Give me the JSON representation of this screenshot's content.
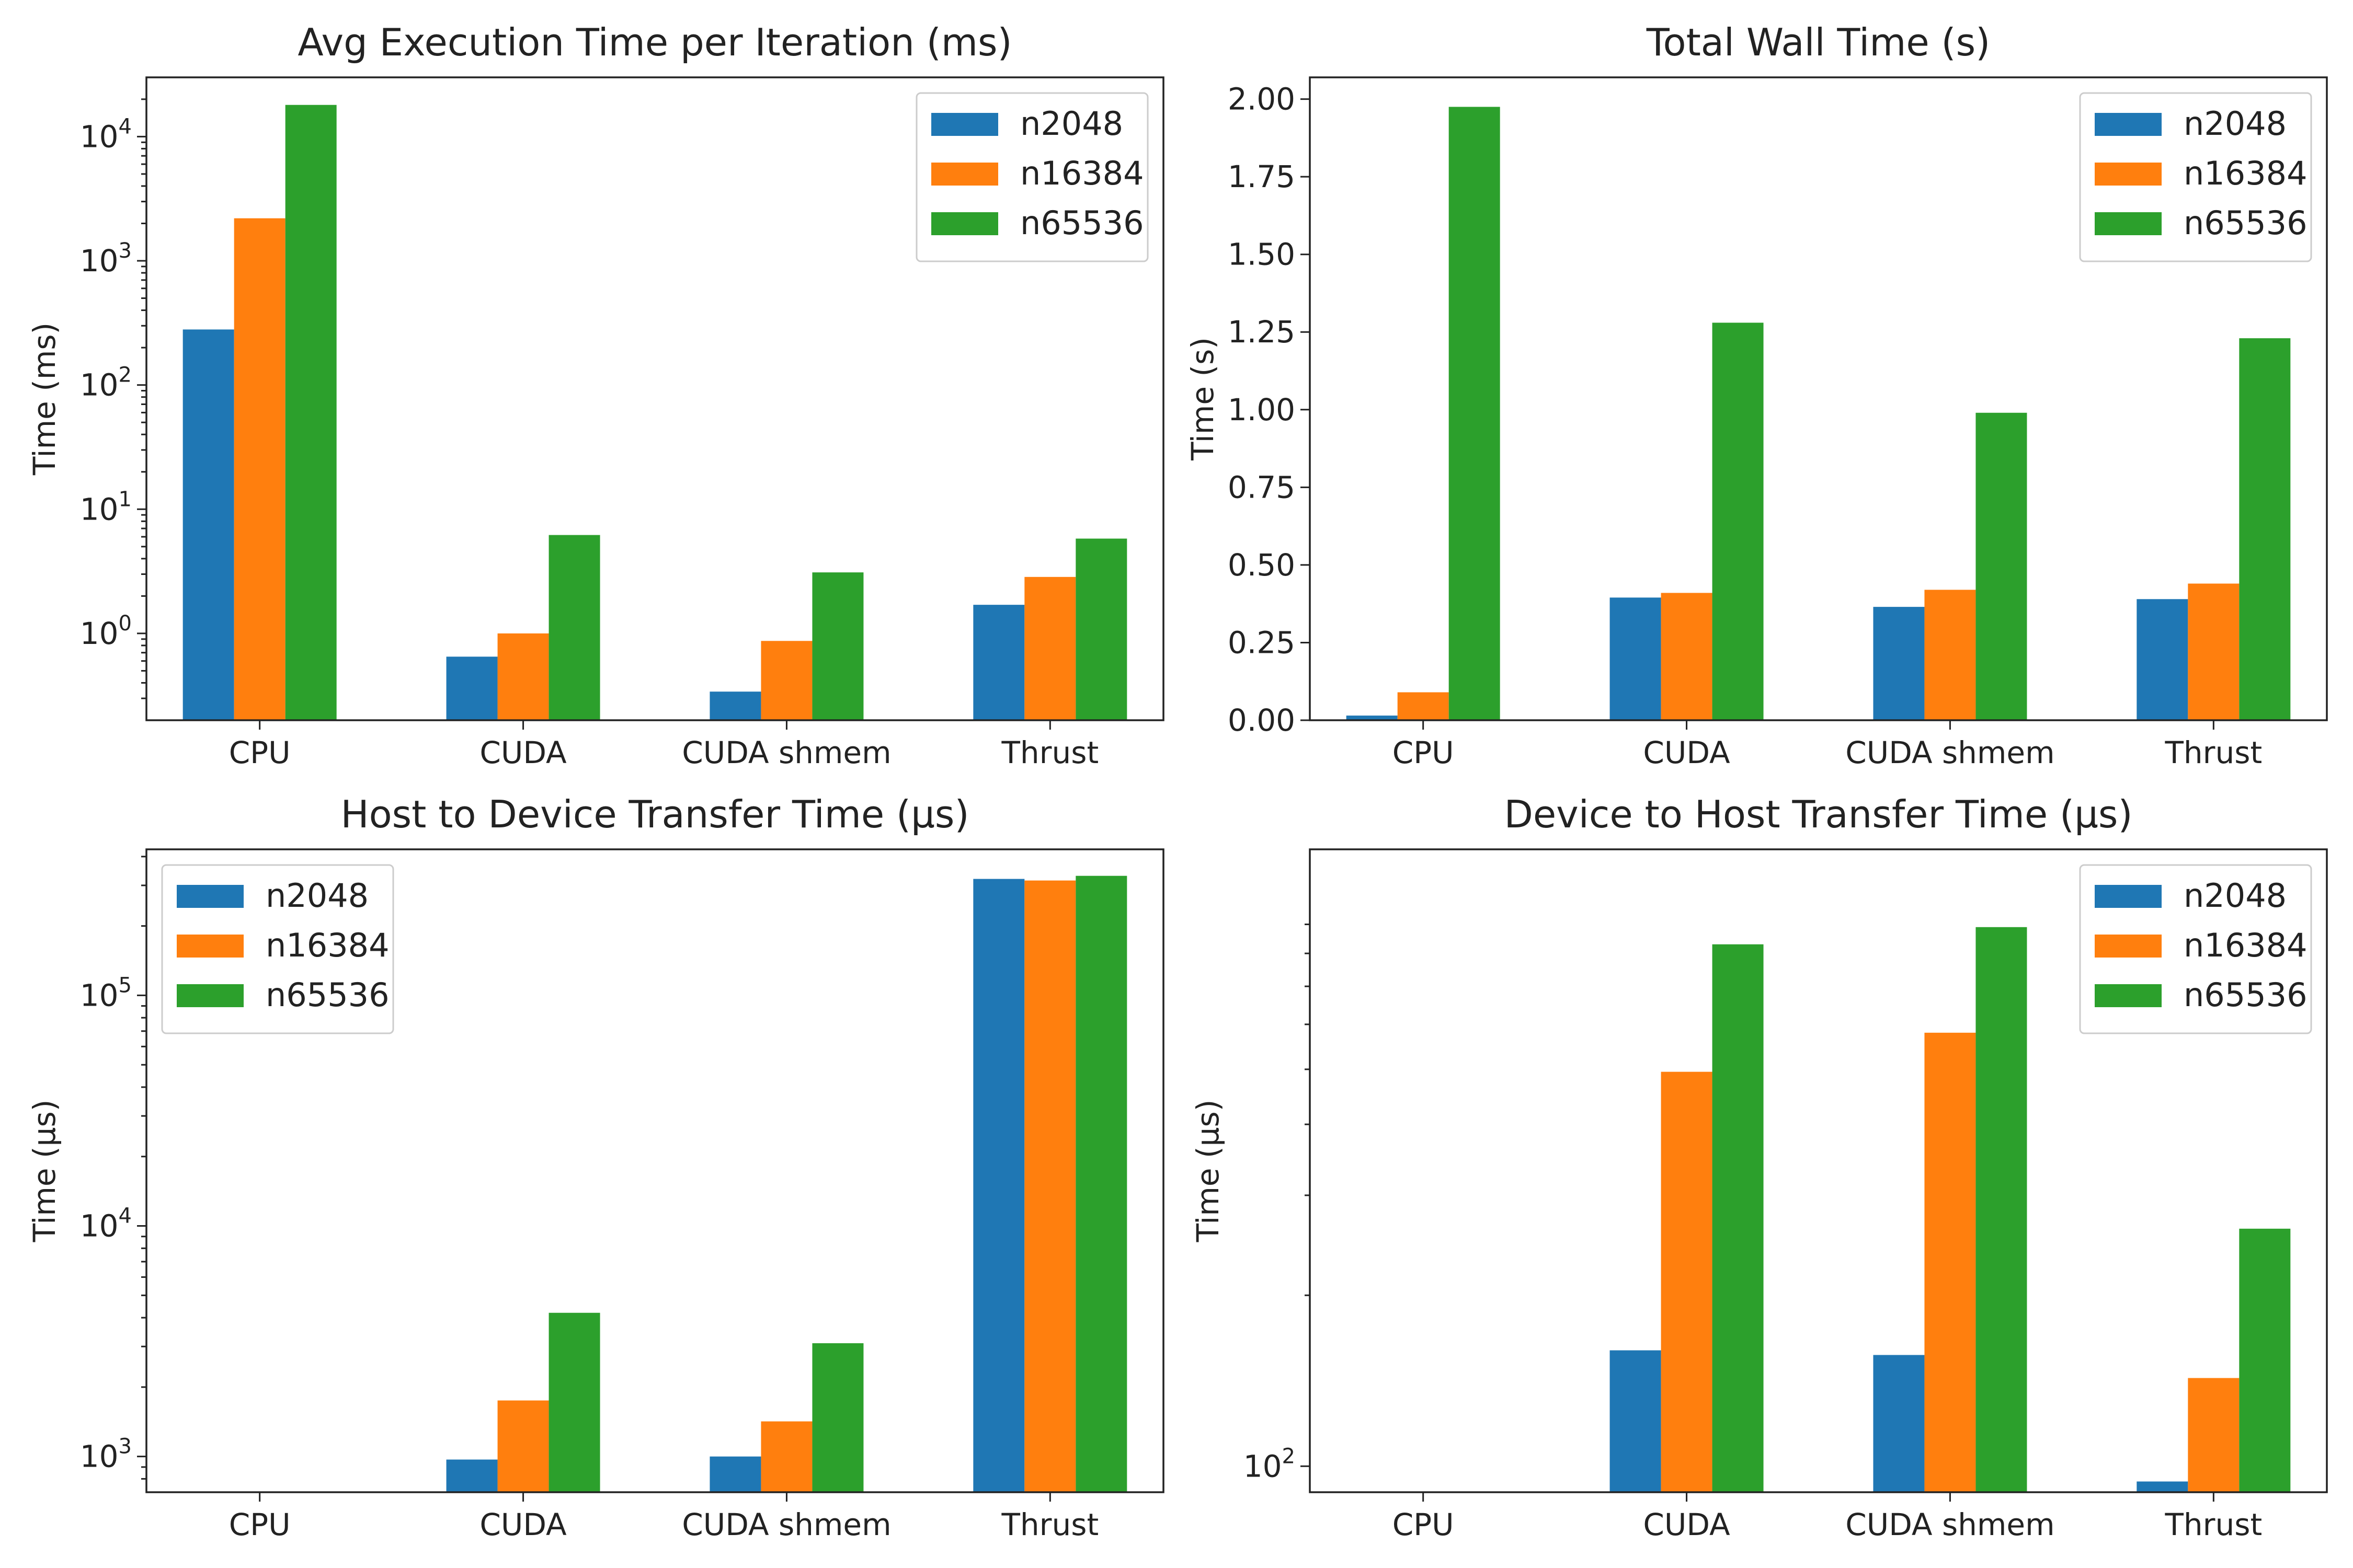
{
  "colors": {
    "n2048": "#1f77b4",
    "n16384": "#ff7f0e",
    "n65536": "#2ca02c"
  },
  "chart_data": [
    {
      "id": "avg-exec",
      "type": "bar",
      "title": "Avg Execution Time per Iteration (ms)",
      "ylabel": "Time (ms)",
      "yscale": "log",
      "ylim": [
        0.2,
        30000
      ],
      "yticks": [
        {
          "value": 1,
          "base": "10",
          "exp": "0"
        },
        {
          "value": 10,
          "base": "10",
          "exp": "1"
        },
        {
          "value": 100,
          "base": "10",
          "exp": "2"
        },
        {
          "value": 1000,
          "base": "10",
          "exp": "3"
        },
        {
          "value": 10000,
          "base": "10",
          "exp": "4"
        }
      ],
      "categories": [
        "CPU",
        "CUDA",
        "CUDA shmem",
        "Thrust"
      ],
      "legend": "top-right",
      "series": [
        {
          "name": "n2048",
          "values": [
            280,
            0.65,
            0.34,
            1.7
          ]
        },
        {
          "name": "n16384",
          "values": [
            2200,
            1.0,
            0.87,
            2.85
          ]
        },
        {
          "name": "n65536",
          "values": [
            18000,
            6.2,
            3.1,
            5.8
          ]
        }
      ]
    },
    {
      "id": "wall",
      "type": "bar",
      "title": "Total Wall Time (s)",
      "ylabel": "Time (s)",
      "yscale": "linear",
      "ylim": [
        0,
        2.07
      ],
      "yticks": [
        {
          "value": 0,
          "label": "0.00"
        },
        {
          "value": 0.25,
          "label": "0.25"
        },
        {
          "value": 0.5,
          "label": "0.50"
        },
        {
          "value": 0.75,
          "label": "0.75"
        },
        {
          "value": 1.0,
          "label": "1.00"
        },
        {
          "value": 1.25,
          "label": "1.25"
        },
        {
          "value": 1.5,
          "label": "1.50"
        },
        {
          "value": 1.75,
          "label": "1.75"
        },
        {
          "value": 2.0,
          "label": "2.00"
        }
      ],
      "categories": [
        "CPU",
        "CUDA",
        "CUDA shmem",
        "Thrust"
      ],
      "legend": "top-right",
      "series": [
        {
          "name": "n2048",
          "values": [
            0.015,
            0.395,
            0.365,
            0.39
          ]
        },
        {
          "name": "n16384",
          "values": [
            0.09,
            0.41,
            0.42,
            0.44
          ]
        },
        {
          "name": "n65536",
          "values": [
            1.975,
            1.28,
            0.99,
            1.23
          ]
        }
      ]
    },
    {
      "id": "h2d",
      "type": "bar",
      "title": "Host to Device Transfer Time (μs)",
      "ylabel": "Time (μs)",
      "yscale": "log",
      "ylim": [
        700,
        430000
      ],
      "yticks": [
        {
          "value": 1000,
          "base": "10",
          "exp": "3"
        },
        {
          "value": 10000,
          "base": "10",
          "exp": "4"
        },
        {
          "value": 100000,
          "base": "10",
          "exp": "5"
        }
      ],
      "categories": [
        "CPU",
        "CUDA",
        "CUDA shmem",
        "Thrust"
      ],
      "legend": "top-left",
      "series": [
        {
          "name": "n2048",
          "values": [
            null,
            970,
            1000,
            320000
          ]
        },
        {
          "name": "n16384",
          "values": [
            null,
            1750,
            1420,
            315000
          ]
        },
        {
          "name": "n65536",
          "values": [
            null,
            4200,
            3100,
            330000
          ]
        }
      ]
    },
    {
      "id": "d2h",
      "type": "bar",
      "title": "Device to Host Transfer Time (μs)",
      "ylabel": "Time (μs)",
      "yscale": "log",
      "ylim": [
        90,
        1220
      ],
      "yticks": [
        {
          "value": 100,
          "base": "10",
          "exp": "2"
        }
      ],
      "categories": [
        "CPU",
        "CUDA",
        "CUDA shmem",
        "Thrust"
      ],
      "legend": "top-right",
      "series": [
        {
          "name": "n2048",
          "values": [
            null,
            160,
            157,
            94
          ]
        },
        {
          "name": "n16384",
          "values": [
            null,
            495,
            580,
            143
          ]
        },
        {
          "name": "n65536",
          "values": [
            null,
            830,
            890,
            262
          ]
        }
      ]
    }
  ]
}
